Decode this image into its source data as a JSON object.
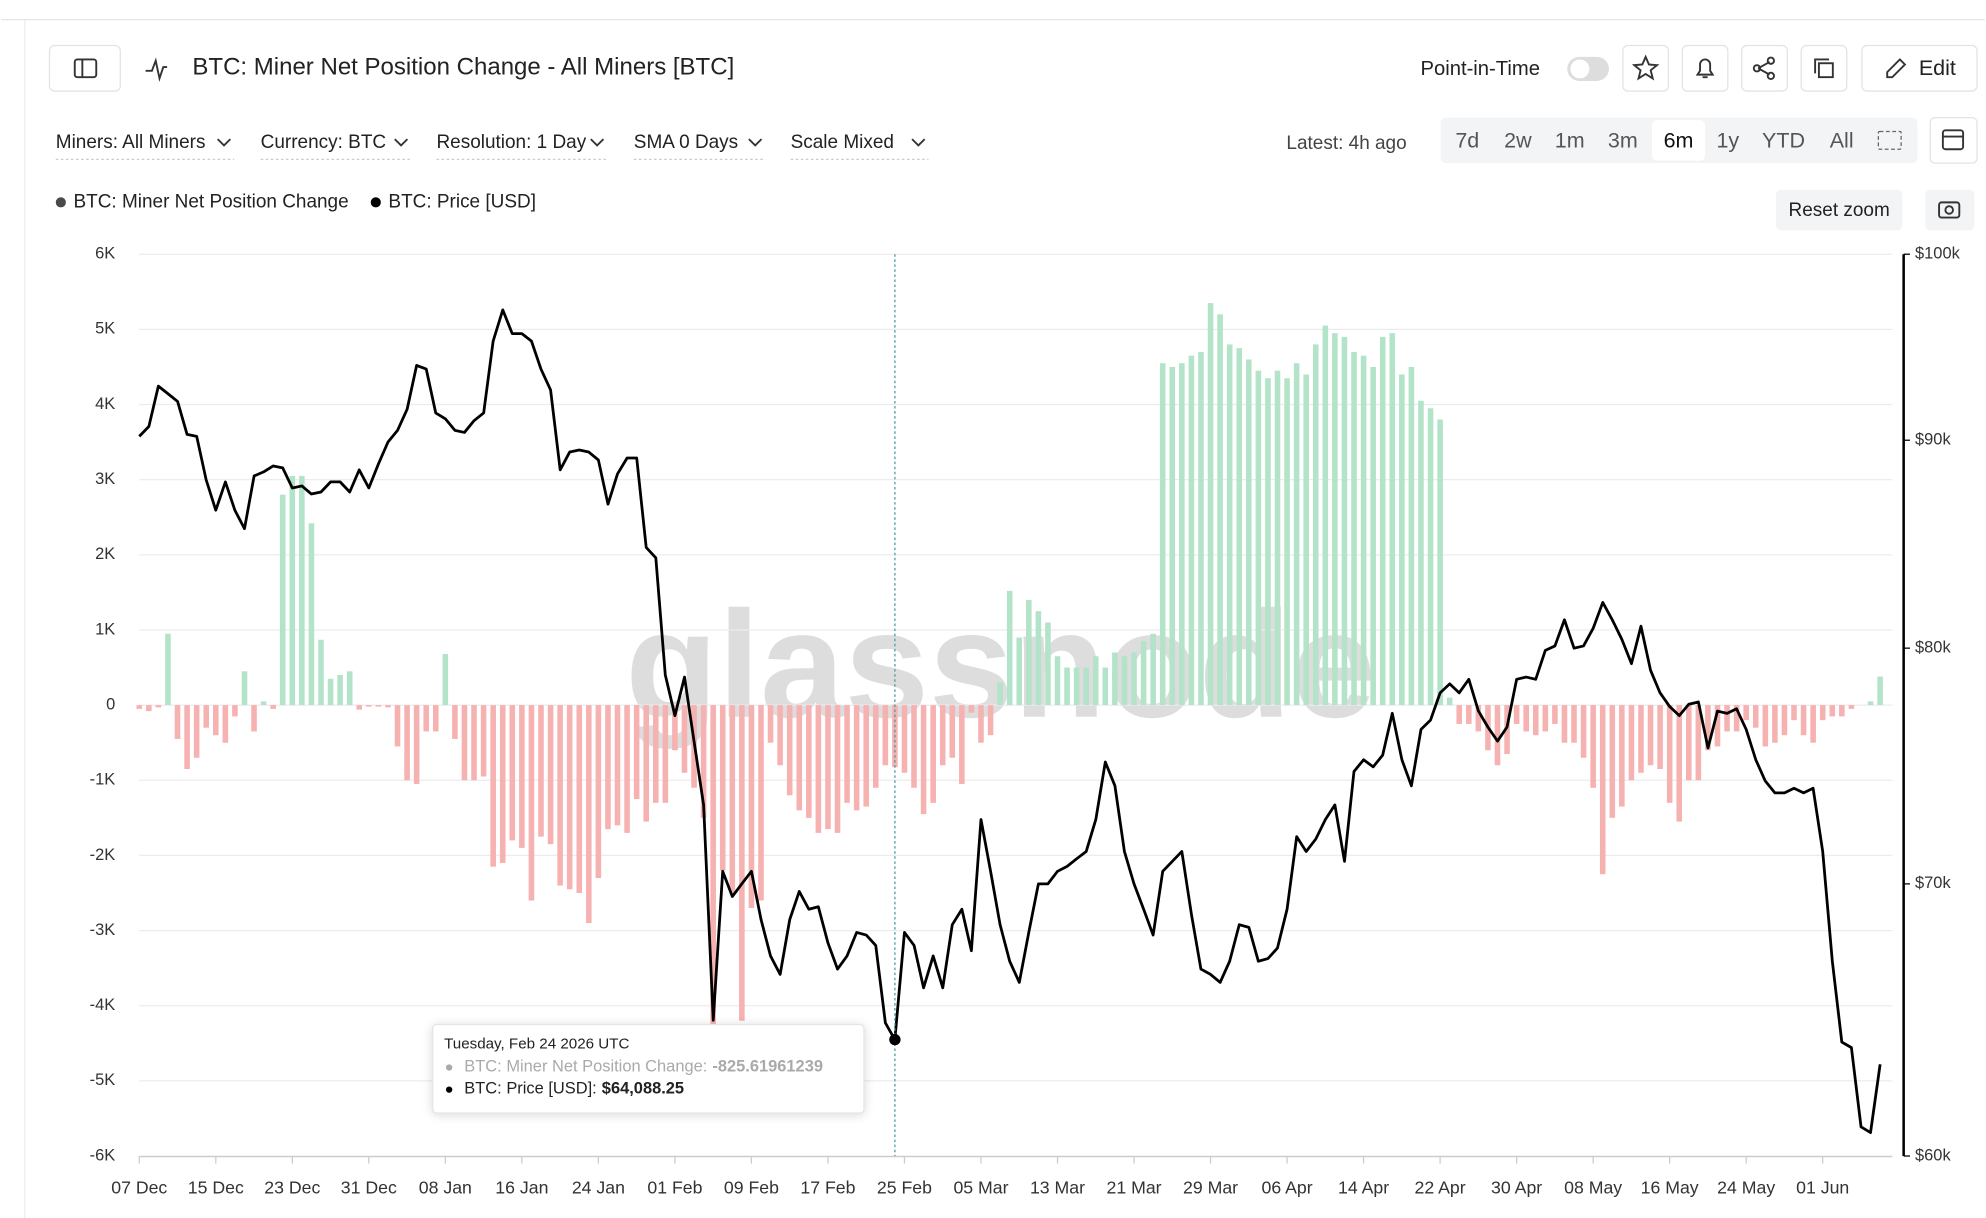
{
  "header": {
    "title": "BTC: Miner Net Position Change - All Miners [BTC]",
    "point_in_time": "Point-in-Time",
    "edit": "Edit"
  },
  "toolbar": {
    "filters": [
      "Miners: All Miners",
      "Currency: BTC",
      "Resolution: 1 Day",
      "SMA 0 Days",
      "Scale Mixed"
    ],
    "latest": "Latest: 4h ago",
    "ranges": [
      "7d",
      "2w",
      "1m",
      "3m",
      "6m",
      "1y",
      "YTD",
      "All"
    ],
    "active": "6m",
    "reset_zoom": "Reset zoom"
  },
  "chart_data": {
    "type": "combo",
    "watermark": "glassnode",
    "grid": true,
    "y2scale": "log",
    "categories": [
      "07 Dec",
      null,
      null,
      null,
      null,
      null,
      null,
      null,
      "15 Dec",
      null,
      null,
      null,
      null,
      null,
      null,
      null,
      "23 Dec",
      null,
      null,
      null,
      null,
      null,
      null,
      null,
      "31 Dec",
      null,
      null,
      null,
      null,
      null,
      null,
      null,
      "08 Jan",
      null,
      null,
      null,
      null,
      null,
      null,
      null,
      "16 Jan",
      null,
      null,
      null,
      null,
      null,
      null,
      null,
      "24 Jan",
      null,
      null,
      null,
      null,
      null,
      null,
      null,
      "01 Feb",
      null,
      null,
      null,
      null,
      null,
      null,
      null,
      "09 Feb",
      null,
      null,
      null,
      null,
      null,
      null,
      null,
      "17 Feb",
      null,
      null,
      null,
      null,
      null,
      null,
      null,
      "25 Feb",
      null,
      null,
      null,
      null,
      null,
      null,
      null,
      "05 Mar",
      null,
      null,
      null,
      null,
      null,
      null,
      null,
      "13 Mar",
      null,
      null,
      null,
      null,
      null,
      null,
      null,
      "21 Mar",
      null,
      null,
      null,
      null,
      null,
      null,
      null,
      "29 Mar",
      null,
      null,
      null,
      null,
      null,
      null,
      null,
      "06 Apr",
      null,
      null,
      null,
      null,
      null,
      null,
      null,
      "14 Apr",
      null,
      null,
      null,
      null,
      null,
      null,
      null,
      "22 Apr",
      null,
      null,
      null,
      null,
      null,
      null,
      null,
      "30 Apr",
      null,
      null,
      null,
      null,
      null,
      null,
      null,
      "08 May",
      null,
      null,
      null,
      null,
      null,
      null,
      null,
      "16 May",
      null,
      null,
      null,
      null,
      null,
      null,
      null,
      "24 May",
      null,
      null,
      null,
      null,
      null,
      null,
      null,
      "01 Jun",
      null,
      null,
      null,
      null,
      null,
      null
    ],
    "ylim": [
      -6000,
      6000
    ],
    "yticks": [
      {
        "value": 6000,
        "label": "6K"
      },
      {
        "value": 5000,
        "label": "5K"
      },
      {
        "value": 4000,
        "label": "4K"
      },
      {
        "value": 3000,
        "label": "3K"
      },
      {
        "value": 2000,
        "label": "2K"
      },
      {
        "value": 1000,
        "label": "1K"
      },
      0,
      {
        "value": -1000,
        "label": "-1K"
      },
      {
        "value": -2000,
        "label": "-2K"
      },
      {
        "value": -3000,
        "label": "-3K"
      },
      {
        "value": -4000,
        "label": "-4K"
      },
      {
        "value": -5000,
        "label": "-5K"
      },
      {
        "value": -6000,
        "label": "-6K"
      }
    ],
    "y2lim": [
      60000,
      100000
    ],
    "y2ticks": [
      {
        "value": 100000,
        "label": "$100k"
      },
      {
        "value": 90000,
        "label": "$90k"
      },
      {
        "value": 80000,
        "label": "$80k"
      },
      {
        "value": 70000,
        "label": "$70k"
      },
      {
        "value": 60000,
        "label": "$60k"
      }
    ],
    "series": [
      {
        "name": "BTC: Miner Net Position Change",
        "type": "bar",
        "color": "#b3e3c8",
        "negative_color": "#f6b1b1",
        "legend_color": "#4a4a4a",
        "values": [
          -50,
          -80,
          -30,
          950,
          -450,
          -850,
          -700,
          -300,
          -400,
          -500,
          -150,
          450,
          -350,
          50,
          -50,
          2800,
          3050,
          3050,
          2420,
          870,
          350,
          400,
          450,
          -60,
          -20,
          -20,
          -30,
          -550,
          -1000,
          -1050,
          -350,
          -350,
          680,
          -450,
          -1000,
          -1000,
          -950,
          -2150,
          -2100,
          -1800,
          -1900,
          -2600,
          -1750,
          -1850,
          -2400,
          -2450,
          -2500,
          -2900,
          -2300,
          -1650,
          -1600,
          -1700,
          -1250,
          -1550,
          -1300,
          -1300,
          -600,
          -900,
          -1100,
          -1500,
          -4300,
          -2200,
          -2500,
          -4200,
          -2700,
          -2600,
          -500,
          -800,
          -1200,
          -1400,
          -1500,
          -1700,
          -1650,
          -1700,
          -1300,
          -1400,
          -1350,
          -1100,
          -800,
          -825.61961239,
          -900,
          -1100,
          -1450,
          -1300,
          -800,
          -700,
          -1050,
          -100,
          -500,
          -400,
          300,
          1520,
          900,
          1400,
          1250,
          1100,
          650,
          500,
          500,
          500,
          650,
          500,
          700,
          650,
          700,
          850,
          950,
          4550,
          4500,
          4550,
          4650,
          4700,
          5350,
          5200,
          4800,
          4750,
          4600,
          4450,
          4350,
          4450,
          4350,
          4550,
          4400,
          4800,
          5050,
          4950,
          4900,
          4700,
          4650,
          4500,
          4900,
          4950,
          4400,
          4500,
          4050,
          3950,
          3800,
          100,
          -250,
          -250,
          -350,
          -600,
          -800,
          -650,
          -250,
          -350,
          -400,
          -350,
          -250,
          -500,
          -500,
          -700,
          -1100,
          -2250,
          -1500,
          -1350,
          -1000,
          -900,
          -800,
          -850,
          -1300,
          -1550,
          -1000,
          -1000,
          -600,
          -550,
          -350,
          -350,
          -200,
          -300,
          -550,
          -500,
          -400,
          -200,
          -400,
          -500,
          -200,
          -150,
          -150,
          -50,
          0,
          50,
          380
        ]
      },
      {
        "name": "BTC: Price [USD]",
        "type": "line",
        "axis": "y2",
        "color": "#000000",
        "values": [
          90200,
          90700,
          92800,
          92400,
          92000,
          90300,
          90200,
          88000,
          86500,
          87900,
          86500,
          85600,
          88200,
          88400,
          88700,
          88600,
          87600,
          87700,
          87300,
          87400,
          87900,
          87900,
          87400,
          88500,
          87600,
          88800,
          89900,
          90500,
          91600,
          93900,
          93700,
          91400,
          91100,
          90500,
          90400,
          91000,
          91400,
          95200,
          96900,
          95600,
          95600,
          95200,
          93700,
          92600,
          88500,
          89400,
          89500,
          89400,
          89000,
          86800,
          88300,
          89100,
          89100,
          84700,
          84200,
          78800,
          77000,
          78700,
          75900,
          73200,
          64800,
          70500,
          69500,
          70000,
          70500,
          68600,
          67200,
          66500,
          68600,
          69700,
          69000,
          69100,
          67700,
          66700,
          67200,
          68100,
          68000,
          67600,
          64700,
          64088.25,
          68100,
          67600,
          66000,
          67200,
          66000,
          68400,
          69000,
          67400,
          72600,
          70500,
          68400,
          67000,
          66200,
          68100,
          70000,
          70000,
          70500,
          70700,
          71000,
          71300,
          72600,
          75000,
          74000,
          71300,
          70000,
          69000,
          68000,
          70500,
          70900,
          71300,
          68800,
          66700,
          66500,
          66200,
          67000,
          68400,
          68300,
          67000,
          67100,
          67500,
          69000,
          71900,
          71300,
          71800,
          72600,
          73200,
          70900,
          74600,
          75100,
          74800,
          75300,
          77100,
          75100,
          74000,
          76400,
          76800,
          78000,
          78400,
          78000,
          78600,
          77200,
          76500,
          75900,
          76500,
          78600,
          78700,
          78600,
          79900,
          80100,
          81300,
          80000,
          80100,
          80900,
          82100,
          81300,
          80400,
          79300,
          81000,
          79000,
          78000,
          77400,
          77000,
          77500,
          77600,
          75600,
          77200,
          77100,
          77300,
          76400,
          75100,
          74200,
          73700,
          73700,
          73900,
          73700,
          73900,
          71300,
          67000,
          64000,
          63800,
          61000,
          60800,
          63200
        ]
      }
    ],
    "tooltip": {
      "title": "Tuesday, Feb 24 2026 UTC",
      "items": [
        {
          "label": "BTC: Miner Net Position Change:",
          "value": "-825.61961239"
        },
        {
          "label": "BTC: Price [USD]:",
          "value": "$64,088.25"
        }
      ]
    }
  }
}
